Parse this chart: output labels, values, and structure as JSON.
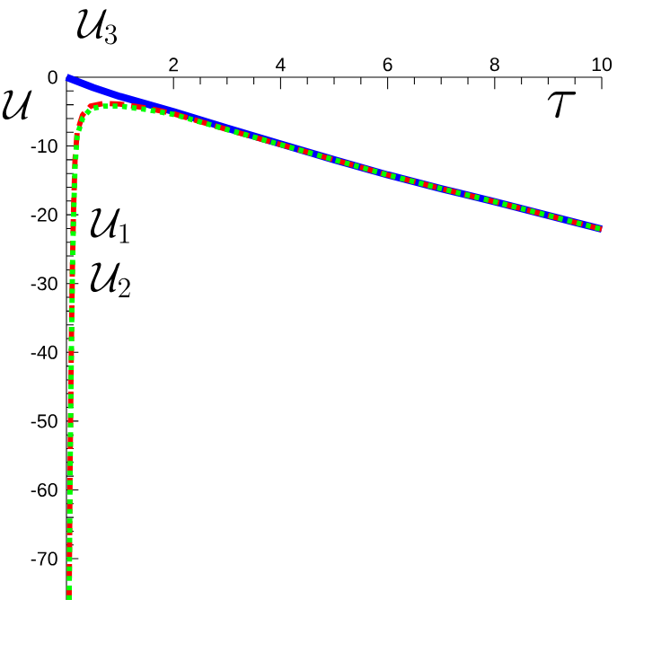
{
  "chart_data": {
    "type": "line",
    "xlabel": "\\tau",
    "ylabel": "\\mathcal{U}",
    "xlim": [
      0,
      10
    ],
    "ylim": [
      -76,
      0
    ],
    "xticks": [
      2,
      4,
      6,
      8,
      10
    ],
    "yticks": [
      0,
      -10,
      -20,
      -30,
      -40,
      -50,
      -60,
      -70
    ],
    "grid": false,
    "marker": "none",
    "series": [
      {
        "color": "#0000ff",
        "line_style": "solid",
        "x": [
          0,
          0.5,
          1,
          2,
          3,
          4,
          5,
          6,
          7,
          8,
          9,
          10
        ],
        "values": [
          0,
          -1.5,
          -2.8,
          -5.0,
          -7.4,
          -9.7,
          -12.0,
          -14.2,
          -16.2,
          -18.1,
          -20.1,
          -22.1
        ]
      },
      {
        "color": "#ff0000",
        "line_style": "dashed",
        "x": [
          0.05,
          0.07,
          0.09,
          0.11,
          0.13,
          0.16,
          0.2,
          0.3,
          0.45,
          0.7,
          1,
          1.5,
          2,
          3,
          4,
          5,
          6,
          7,
          8,
          9,
          10
        ],
        "values": [
          -76,
          -55,
          -40,
          -28,
          -20,
          -12,
          -8,
          -5.5,
          -4.2,
          -3.8,
          -3.9,
          -4.5,
          -5.3,
          -7.6,
          -9.8,
          -12.0,
          -14.2,
          -16.2,
          -18.1,
          -20.1,
          -22.1
        ]
      },
      {
        "color": "#00ff00",
        "line_style": "dotted",
        "x": [
          0.05,
          0.07,
          0.09,
          0.11,
          0.13,
          0.16,
          0.2,
          0.3,
          0.45,
          0.7,
          1,
          1.5,
          2,
          3,
          4,
          5,
          6,
          7,
          8,
          9,
          10
        ],
        "values": [
          -76,
          -56,
          -41,
          -29,
          -21,
          -13,
          -8.5,
          -6,
          -4.6,
          -4.2,
          -4.2,
          -4.7,
          -5.4,
          -7.6,
          -9.8,
          -12.0,
          -14.2,
          -16.2,
          -18.1,
          -20.1,
          -22.1
        ]
      }
    ],
    "annotations": [
      "\\mathcal{U}_3",
      "\\mathcal{U}_1",
      "\\mathcal{U}_2"
    ]
  }
}
